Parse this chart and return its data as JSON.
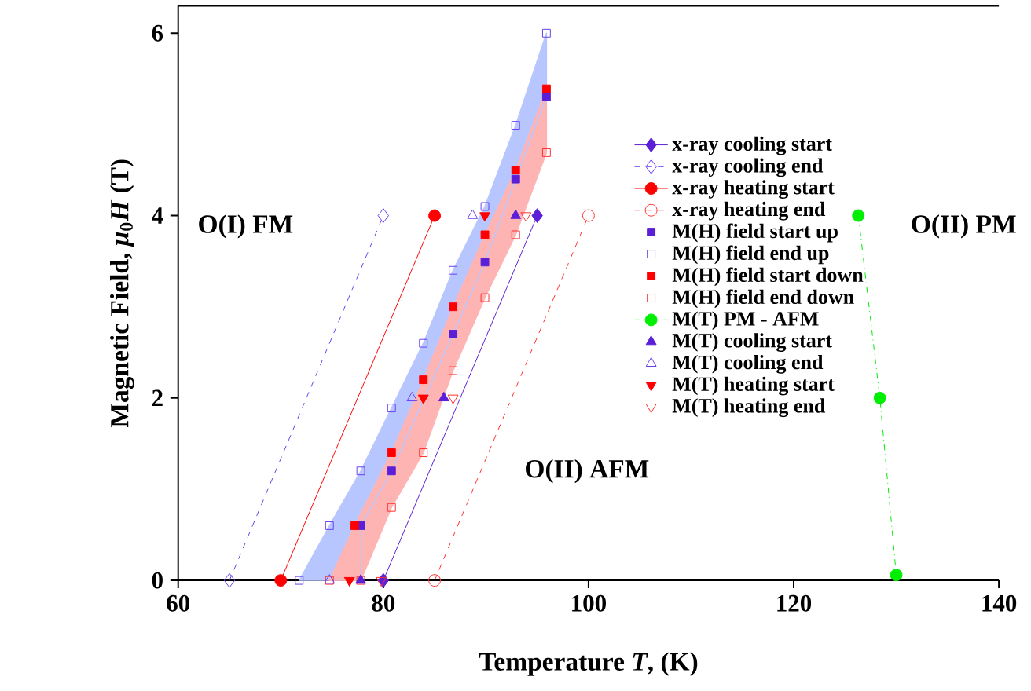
{
  "chart_data": {
    "type": "scatter",
    "xlabel": "Temperature *T*, (K)",
    "ylabel": "Magnetic Field, *μ*$_{0}$*H* (T)",
    "xlim": [
      60,
      140
    ],
    "ylim": [
      0,
      6.3
    ],
    "xticks": [
      60,
      80,
      100,
      120,
      140
    ],
    "yticks": [
      0,
      2,
      4,
      6
    ],
    "legend": "right",
    "annotations": [
      "O(I) FM",
      "O(II) AFM",
      "O(II) PM"
    ],
    "series": [
      {
        "type": "area",
        "color": "#b8c6ff",
        "x": [
          71.8,
          74.75,
          77.8,
          80.8,
          83.9,
          86.8,
          89.9,
          92.9,
          95.9,
          95.9,
          92.9,
          89.9,
          86.8,
          80.8,
          77.8,
          77.8
        ],
        "values": [
          0,
          0.6,
          1.2,
          1.89,
          2.6,
          3.4,
          4.1,
          4.99,
          6.0,
          5.3,
          4.4,
          3.49,
          2.7,
          1.2,
          0.6,
          0
        ]
      },
      {
        "type": "area",
        "color": "#ffb4b4",
        "x": [
          77.2,
          80.8,
          83.9,
          86.8,
          89.9,
          92.9,
          95.9,
          95.9,
          92.9,
          89.9,
          86.8,
          83.9,
          80.8,
          77.8,
          74.75
        ],
        "values": [
          0.6,
          1.4,
          2.2,
          3.0,
          3.79,
          4.5,
          5.39,
          4.69,
          3.79,
          3.1,
          2.3,
          1.4,
          0.8,
          0,
          0
        ]
      },
      {
        "type": "line",
        "name": "x-ray cooling start",
        "color": "#5a1fd6",
        "marker": "diamond",
        "line_style": "solid",
        "x": [
          80,
          95
        ],
        "values": [
          0,
          4
        ]
      },
      {
        "type": "line",
        "name": "x-ray cooling end",
        "color": "#6a3ff0",
        "marker": "diamond-open",
        "line_style": "dashed",
        "x": [
          65,
          80
        ],
        "values": [
          0,
          4
        ]
      },
      {
        "type": "line",
        "name": "x-ray heating start",
        "color": "#ff0000",
        "marker": "circle",
        "line_style": "solid",
        "x": [
          70,
          85
        ],
        "values": [
          0,
          4
        ]
      },
      {
        "type": "line",
        "name": "x-ray heating end",
        "color": "#ff3030",
        "marker": "circle-open",
        "line_style": "dashed",
        "x": [
          85,
          100
        ],
        "values": [
          0,
          4
        ]
      },
      {
        "name": "M(H) field start up",
        "color": "#5a1fd6",
        "marker": "square",
        "x": [
          95.9,
          92.9,
          89.9,
          86.8,
          80.8,
          77.8
        ],
        "values": [
          5.3,
          4.4,
          3.49,
          2.7,
          1.2,
          0.6
        ]
      },
      {
        "name": "M(H) field end up",
        "color": "#6a3ff0",
        "marker": "square-open",
        "x": [
          95.9,
          92.9,
          89.9,
          86.8,
          83.9,
          80.8,
          77.8,
          74.75,
          71.8
        ],
        "values": [
          6.0,
          4.99,
          4.1,
          3.4,
          2.6,
          1.89,
          1.2,
          0.6,
          0
        ]
      },
      {
        "name": "M(H) field start down",
        "color": "#ff0000",
        "marker": "square",
        "x": [
          95.9,
          92.9,
          89.9,
          86.8,
          83.9,
          80.8,
          77.2
        ],
        "values": [
          5.39,
          4.5,
          3.79,
          3.0,
          2.2,
          1.4,
          0.6
        ]
      },
      {
        "name": "M(H) field end down",
        "color": "#ff3030",
        "marker": "square-open",
        "x": [
          95.9,
          92.9,
          89.9,
          86.8,
          83.9,
          80.8,
          77.8,
          74.75
        ],
        "values": [
          4.69,
          3.79,
          3.1,
          2.3,
          1.4,
          0.8,
          0,
          0
        ]
      },
      {
        "type": "line",
        "name": "M(T) PM - AFM",
        "color": "#00ee00",
        "marker": "circle",
        "line_style": "dashdot",
        "x": [
          126.3,
          128.4,
          130
        ],
        "values": [
          4,
          2,
          0.06
        ]
      },
      {
        "name": "M(T) cooling start",
        "color": "#5a1fd6",
        "marker": "triangle",
        "x": [
          92.9,
          85.9,
          77.8
        ],
        "values": [
          4,
          2,
          0
        ]
      },
      {
        "name": "M(T) cooling end",
        "color": "#6a3ff0",
        "marker": "triangle-open",
        "x": [
          88.7,
          82.8,
          74.75
        ],
        "values": [
          4,
          2,
          0
        ]
      },
      {
        "name": "M(T) heating start",
        "color": "#ff0000",
        "marker": "triangle-down",
        "x": [
          89.9,
          83.9,
          76.7
        ],
        "values": [
          4,
          2,
          0
        ]
      },
      {
        "name": "M(T) heating end",
        "color": "#ff3030",
        "marker": "triangle-down-open",
        "x": [
          93.9,
          86.8,
          79.8
        ],
        "values": [
          4,
          2,
          0
        ]
      }
    ]
  }
}
